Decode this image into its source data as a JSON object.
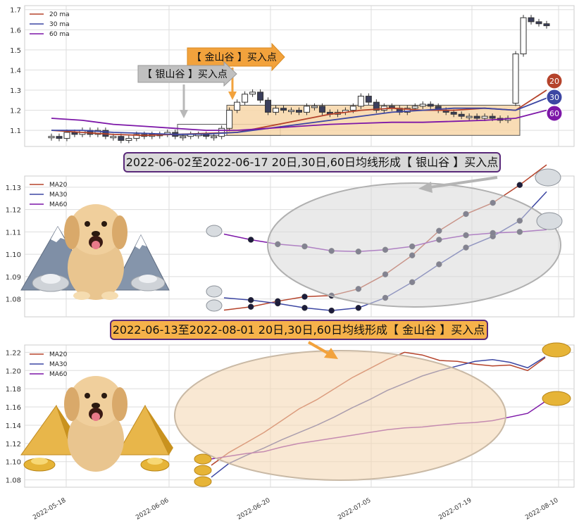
{
  "colors": {
    "ma20": "#b5432b",
    "ma30": "#3d47a3",
    "ma60": "#7d17a8",
    "gold_fill": "#f7d6a8",
    "gold_arrow": "#f2a23c",
    "silver_arrow": "#c0c0c0",
    "grid": "#dddddd",
    "candle_up": "#ffffff",
    "candle_down": "#3b3f5c",
    "banner_silver_bg": "#d9d9d9",
    "banner_gold_bg": "#f6b24a",
    "banner_border": "#5a2a7a"
  },
  "top_chart": {
    "legend": [
      "20 ma",
      "30 ma",
      "60 ma"
    ],
    "y_ticks": [
      "1.7",
      "1.6",
      "1.5",
      "1.4",
      "1.3",
      "1.2",
      "1.1"
    ],
    "gold_label": "【 金山谷 】买入点",
    "silver_label": "【 银山谷 】买入点",
    "badges": [
      "20",
      "30",
      "60"
    ]
  },
  "banner_silver": "2022-06-02至2022-06-17 20日,30日,60日均线形成【 银山谷 】买入点",
  "banner_gold": "2022-06-13至2022-08-01 20日,30日,60日均线形成【 金山谷 】买入点",
  "chart_data": [
    {
      "type": "candlestick",
      "title": "",
      "ylim": [
        1.02,
        1.72
      ],
      "y_ticks": [
        1.1,
        1.2,
        1.3,
        1.4,
        1.5,
        1.6,
        1.7
      ],
      "x_ticks": [
        "2022-05-18",
        "2022-06-06",
        "2022-06-20",
        "2022-07-05",
        "2022-07-19",
        "2022-08-10"
      ],
      "candles_close": [
        1.07,
        1.06,
        1.09,
        1.08,
        1.1,
        1.08,
        1.1,
        1.07,
        1.07,
        1.05,
        1.06,
        1.08,
        1.07,
        1.08,
        1.08,
        1.09,
        1.07,
        1.07,
        1.08,
        1.08,
        1.07,
        1.07,
        1.11,
        1.2,
        1.24,
        1.28,
        1.29,
        1.25,
        1.19,
        1.21,
        1.2,
        1.2,
        1.19,
        1.22,
        1.22,
        1.19,
        1.18,
        1.19,
        1.2,
        1.22,
        1.27,
        1.24,
        1.2,
        1.22,
        1.21,
        1.19,
        1.21,
        1.22,
        1.23,
        1.22,
        1.2,
        1.19,
        1.18,
        1.17,
        1.17,
        1.16,
        1.17,
        1.16,
        1.15,
        1.16,
        1.48,
        1.66,
        1.64,
        1.63,
        1.62
      ],
      "series": [
        {
          "name": "20 ma",
          "values": [
            1.1,
            1.09,
            1.08,
            1.075,
            1.08,
            1.085,
            1.09,
            1.12,
            1.15,
            1.18,
            1.2,
            1.21,
            1.2,
            1.2,
            1.21,
            1.2,
            1.3
          ]
        },
        {
          "name": "30 ma",
          "values": [
            1.1,
            1.1,
            1.09,
            1.085,
            1.08,
            1.082,
            1.09,
            1.11,
            1.13,
            1.15,
            1.17,
            1.19,
            1.2,
            1.21,
            1.21,
            1.2,
            1.26
          ]
        },
        {
          "name": "60 ma",
          "values": [
            1.16,
            1.15,
            1.13,
            1.12,
            1.11,
            1.1,
            1.1,
            1.11,
            1.12,
            1.13,
            1.135,
            1.14,
            1.14,
            1.145,
            1.15,
            1.16,
            1.2
          ]
        }
      ]
    },
    {
      "type": "line",
      "title": "2022-06-02至2022-06-17 20日,30日,60日均线形成【 银山谷 】买入点",
      "ylim": [
        1.072,
        1.135
      ],
      "y_ticks": [
        1.08,
        1.09,
        1.1,
        1.11,
        1.12,
        1.13
      ],
      "series": [
        {
          "name": "MA20",
          "values": [
            1.075,
            1.0765,
            1.079,
            1.081,
            1.0815,
            1.0845,
            1.091,
            1.0995,
            1.1105,
            1.118,
            1.123,
            1.131,
            1.14
          ]
        },
        {
          "name": "MA30",
          "values": [
            1.0805,
            1.0795,
            1.078,
            1.076,
            1.0748,
            1.076,
            1.0805,
            1.0875,
            1.0955,
            1.103,
            1.108,
            1.115,
            1.128
          ]
        },
        {
          "name": "MA60",
          "values": [
            1.109,
            1.1065,
            1.1045,
            1.1035,
            1.1015,
            1.1012,
            1.102,
            1.1035,
            1.1065,
            1.1085,
            1.1095,
            1.11,
            1.111
          ]
        }
      ]
    },
    {
      "type": "line",
      "title": "2022-06-13至2022-08-01 20日,30日,60日均线形成【 金山谷 】买入点",
      "ylim": [
        1.072,
        1.228
      ],
      "y_ticks": [
        1.08,
        1.1,
        1.12,
        1.14,
        1.16,
        1.18,
        1.2,
        1.22
      ],
      "x_ticks": [
        "2022-05-18",
        "2022-06-06",
        "2022-06-20",
        "2022-07-05",
        "2022-07-19",
        "2022-08-10"
      ],
      "series": [
        {
          "name": "MA20",
          "values": [
            1.096,
            1.11,
            1.121,
            1.132,
            1.145,
            1.158,
            1.168,
            1.18,
            1.192,
            1.202,
            1.212,
            1.22,
            1.217,
            1.211,
            1.21,
            1.207,
            1.205,
            1.206,
            1.2,
            1.214
          ]
        },
        {
          "name": "MA30",
          "values": [
            1.083,
            1.098,
            1.107,
            1.115,
            1.124,
            1.132,
            1.14,
            1.149,
            1.159,
            1.168,
            1.178,
            1.186,
            1.194,
            1.2,
            1.205,
            1.21,
            1.212,
            1.209,
            1.203,
            1.215
          ]
        },
        {
          "name": "MA60",
          "values": [
            1.103,
            1.106,
            1.109,
            1.111,
            1.116,
            1.12,
            1.123,
            1.126,
            1.129,
            1.132,
            1.135,
            1.137,
            1.138,
            1.14,
            1.142,
            1.143,
            1.145,
            1.149,
            1.153,
            1.166
          ]
        }
      ]
    }
  ],
  "decor": {
    "dog_icon": "golden-retriever-dog",
    "mountain_icon": "snow-mountain",
    "silver_ingot_icon": "silver-ingot",
    "gold_ingot_icon": "gold-ingot",
    "gold_pyramid_icon": "gold-pyramid"
  }
}
